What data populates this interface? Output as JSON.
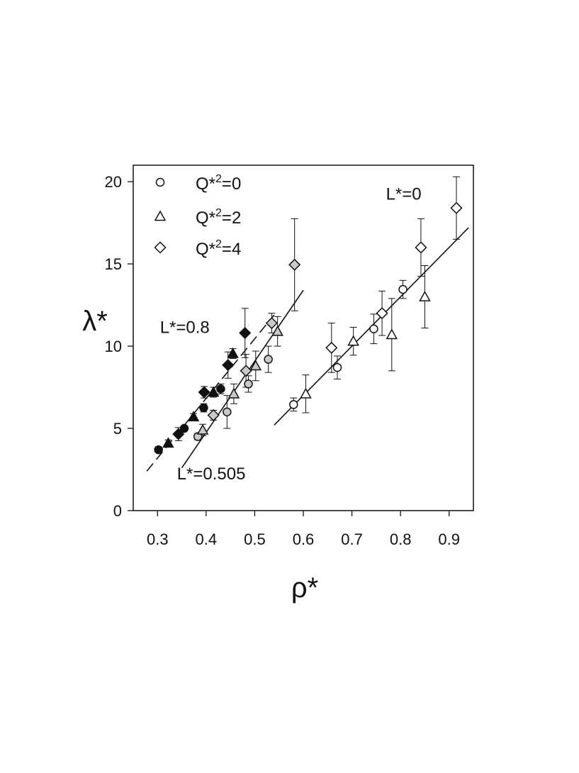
{
  "chart_data": {
    "type": "scatter",
    "title": "",
    "xlabel": "ρ*",
    "ylabel": "λ*",
    "xlim": [
      0.25,
      0.95
    ],
    "ylim": [
      0,
      21
    ],
    "xticks": [
      "0.3",
      "0.4",
      "0.5",
      "0.6",
      "0.7",
      "0.8",
      "0.9"
    ],
    "yticks": [
      "0",
      "5",
      "10",
      "15",
      "20"
    ],
    "grid": false,
    "legend_position": "top-left",
    "legend": [
      {
        "marker": "circle",
        "base": "Q*",
        "sup": "2",
        "rest": "=0"
      },
      {
        "marker": "triangle",
        "base": "Q*",
        "sup": "2",
        "rest": "=2"
      },
      {
        "marker": "diamond",
        "base": "Q*",
        "sup": "2",
        "rest": "=4"
      }
    ],
    "annotations": [
      {
        "text": "L*=0",
        "anchor": [
          0.77,
          18.9
        ]
      },
      {
        "text": "L*=0.8",
        "anchor": [
          0.305,
          10.8
        ]
      },
      {
        "text": "L*=0.505",
        "anchor": [
          0.34,
          1.9
        ]
      }
    ],
    "fill_colors": {
      "black": "#111111",
      "gray": "#c9c9c9",
      "white": "#ffffff"
    },
    "fit_lines": [
      {
        "group": "L*=0",
        "style": "solid",
        "x": [
          0.54,
          0.94
        ],
        "y": [
          5.2,
          17.2
        ]
      },
      {
        "group": "L*=0.505",
        "style": "solid",
        "x": [
          0.35,
          0.6
        ],
        "y": [
          2.6,
          13.4
        ]
      },
      {
        "group": "L*=0.8",
        "style": "dashed",
        "x": [
          0.278,
          0.54
        ],
        "y": [
          2.4,
          11.9
        ]
      }
    ],
    "series": [
      {
        "group": "L*=0",
        "marker": "circle",
        "fill": "white",
        "points": [
          {
            "x": 0.58,
            "y": 6.45,
            "err": 0.4
          },
          {
            "x": 0.67,
            "y": 8.7,
            "err": 0.7
          },
          {
            "x": 0.745,
            "y": 11.05,
            "err": 0.9
          },
          {
            "x": 0.805,
            "y": 13.45,
            "err": 0.55
          }
        ]
      },
      {
        "group": "L*=0",
        "marker": "triangle",
        "fill": "white",
        "points": [
          {
            "x": 0.605,
            "y": 7.1,
            "err": 1.15
          },
          {
            "x": 0.703,
            "y": 10.3,
            "err": 0.85
          },
          {
            "x": 0.782,
            "y": 10.7,
            "err": 2.2
          },
          {
            "x": 0.85,
            "y": 13.0,
            "err": 1.9
          }
        ]
      },
      {
        "group": "L*=0",
        "marker": "diamond",
        "fill": "white",
        "points": [
          {
            "x": 0.658,
            "y": 9.9,
            "err": 1.5
          },
          {
            "x": 0.762,
            "y": 12.0,
            "err": 1.35
          },
          {
            "x": 0.842,
            "y": 16.0,
            "err": 1.75
          },
          {
            "x": 0.915,
            "y": 18.4,
            "err": 1.9
          }
        ]
      },
      {
        "group": "L*=0.505",
        "marker": "circle",
        "fill": "gray",
        "points": [
          {
            "x": 0.383,
            "y": 4.5,
            "err": 0.2
          },
          {
            "x": 0.443,
            "y": 6.0,
            "err": 1.0
          },
          {
            "x": 0.487,
            "y": 7.7,
            "err": 0.5
          },
          {
            "x": 0.528,
            "y": 9.2,
            "err": 0.8
          }
        ]
      },
      {
        "group": "L*=0.505",
        "marker": "triangle",
        "fill": "gray",
        "points": [
          {
            "x": 0.393,
            "y": 4.9,
            "err": 0.35
          },
          {
            "x": 0.457,
            "y": 7.1,
            "err": 0.6
          },
          {
            "x": 0.502,
            "y": 8.8,
            "err": 0.9
          },
          {
            "x": 0.547,
            "y": 10.9,
            "err": 0.9
          }
        ]
      },
      {
        "group": "L*=0.505",
        "marker": "diamond",
        "fill": "gray",
        "points": [
          {
            "x": 0.415,
            "y": 5.8,
            "err": 0.3
          },
          {
            "x": 0.482,
            "y": 8.5,
            "err": 1.0
          },
          {
            "x": 0.535,
            "y": 11.4,
            "err": 0.6
          },
          {
            "x": 0.582,
            "y": 14.95,
            "err": 2.8
          }
        ]
      },
      {
        "group": "L*=0.8",
        "marker": "circle",
        "fill": "black",
        "points": [
          {
            "x": 0.302,
            "y": 3.7,
            "err": 0.15
          },
          {
            "x": 0.355,
            "y": 5.0,
            "err": 0.15
          },
          {
            "x": 0.395,
            "y": 6.25,
            "err": 0.25
          },
          {
            "x": 0.43,
            "y": 7.4,
            "err": 0.3
          }
        ]
      },
      {
        "group": "L*=0.8",
        "marker": "triangle",
        "fill": "black",
        "points": [
          {
            "x": 0.322,
            "y": 4.1,
            "err": 0.2
          },
          {
            "x": 0.374,
            "y": 5.7,
            "err": 0.2
          },
          {
            "x": 0.415,
            "y": 7.2,
            "err": 0.3
          },
          {
            "x": 0.455,
            "y": 9.55,
            "err": 0.3
          }
        ]
      },
      {
        "group": "L*=0.8",
        "marker": "diamond",
        "fill": "black",
        "points": [
          {
            "x": 0.343,
            "y": 4.65,
            "err": 0.4
          },
          {
            "x": 0.396,
            "y": 7.2,
            "err": 0.35
          },
          {
            "x": 0.445,
            "y": 8.85,
            "err": 0.8
          },
          {
            "x": 0.48,
            "y": 10.8,
            "err": 1.5
          }
        ]
      }
    ]
  }
}
